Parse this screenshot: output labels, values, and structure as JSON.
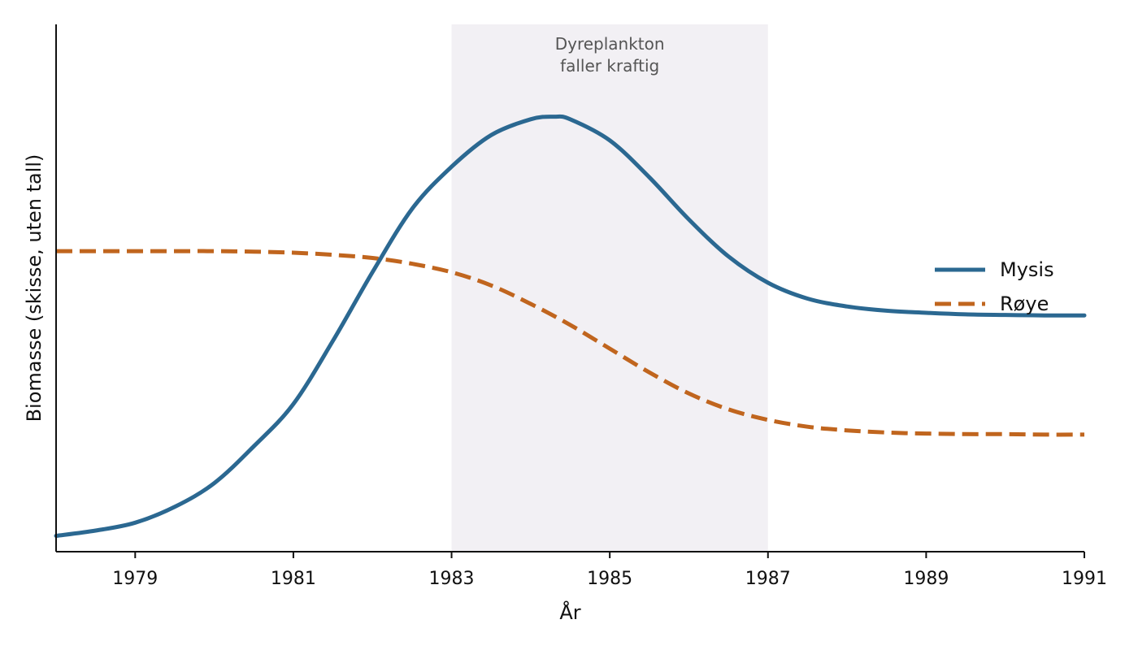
{
  "chart_data": {
    "type": "line",
    "xlabel": "År",
    "ylabel": "Biomasse (skisse, uten tall)",
    "xlim": [
      1978,
      1991
    ],
    "ylim": [
      0,
      1
    ],
    "x_ticks": [
      1979,
      1981,
      1983,
      1985,
      1987,
      1989,
      1991
    ],
    "y_ticks_shown": false,
    "grid": false,
    "legend_position": "right",
    "shaded_region": {
      "x_start": 1983,
      "x_end": 1987,
      "label_lines": [
        "Dyreplankton",
        "faller kraftig"
      ],
      "color": "#f2f0f4"
    },
    "series": [
      {
        "name": "Mysis",
        "style": "solid",
        "color": "#2b6891",
        "x": [
          1978,
          1978.5,
          1979,
          1979.5,
          1980,
          1980.5,
          1981,
          1981.5,
          1982,
          1982.5,
          1983,
          1983.5,
          1984,
          1984.3,
          1984.5,
          1985,
          1985.5,
          1986,
          1986.5,
          1987,
          1987.5,
          1988,
          1988.5,
          1989,
          1989.5,
          1990,
          1990.5,
          1991
        ],
        "y": [
          0.03,
          0.04,
          0.055,
          0.085,
          0.13,
          0.2,
          0.28,
          0.4,
          0.53,
          0.65,
          0.73,
          0.79,
          0.82,
          0.825,
          0.82,
          0.78,
          0.71,
          0.63,
          0.56,
          0.51,
          0.48,
          0.465,
          0.457,
          0.453,
          0.45,
          0.449,
          0.448,
          0.448
        ]
      },
      {
        "name": "Røye",
        "style": "dashed",
        "color": "#c0651e",
        "x": [
          1978,
          1978.5,
          1979,
          1979.5,
          1980,
          1980.5,
          1981,
          1981.5,
          1982,
          1982.5,
          1983,
          1983.5,
          1984,
          1984.5,
          1985,
          1985.5,
          1986,
          1986.5,
          1987,
          1987.5,
          1988,
          1988.5,
          1989,
          1989.5,
          1990,
          1990.5,
          1991
        ],
        "y": [
          0.57,
          0.57,
          0.57,
          0.57,
          0.57,
          0.569,
          0.567,
          0.563,
          0.557,
          0.546,
          0.53,
          0.505,
          0.47,
          0.43,
          0.385,
          0.34,
          0.3,
          0.27,
          0.25,
          0.237,
          0.23,
          0.226,
          0.224,
          0.223,
          0.223,
          0.222,
          0.222
        ]
      }
    ]
  }
}
